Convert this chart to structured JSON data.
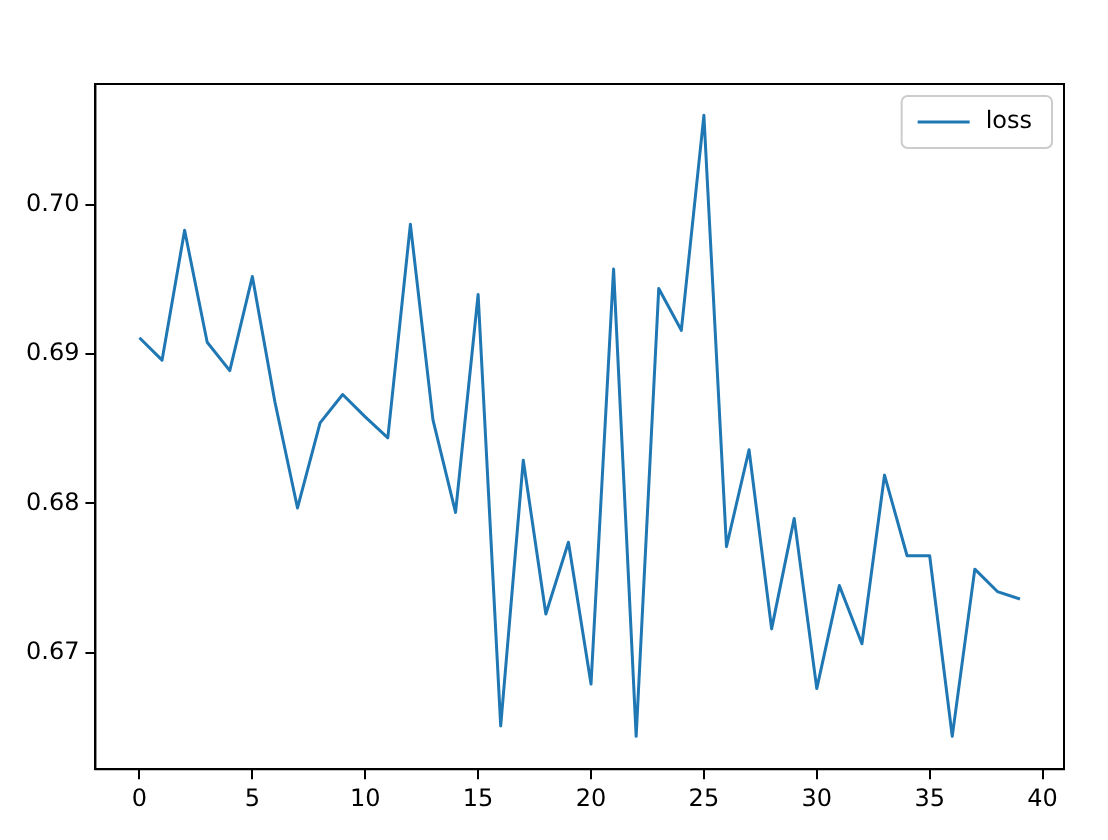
{
  "chart_data": {
    "type": "line",
    "x": [
      0,
      1,
      2,
      3,
      4,
      5,
      6,
      7,
      8,
      9,
      10,
      11,
      12,
      13,
      14,
      15,
      16,
      17,
      18,
      19,
      20,
      21,
      22,
      23,
      24,
      25,
      26,
      27,
      28,
      29,
      30,
      31,
      32,
      33,
      34,
      35,
      36,
      37,
      38,
      39
    ],
    "series": [
      {
        "name": "loss",
        "color": "#1f77b4",
        "values": [
          0.6911,
          0.6896,
          0.6983,
          0.6908,
          0.6889,
          0.6952,
          0.6868,
          0.6797,
          0.6854,
          0.6873,
          0.6858,
          0.6844,
          0.6987,
          0.6856,
          0.6794,
          0.694,
          0.6651,
          0.6829,
          0.6726,
          0.6774,
          0.6679,
          0.6957,
          0.6644,
          0.6944,
          0.6916,
          0.706,
          0.6771,
          0.6836,
          0.6716,
          0.679,
          0.6676,
          0.6745,
          0.6706,
          0.6819,
          0.6765,
          0.6765,
          0.6644,
          0.6756,
          0.6741,
          0.6736
        ]
      }
    ],
    "xlim": [
      -1.95,
      40.95
    ],
    "xticks": [
      0,
      5,
      10,
      15,
      20,
      25,
      30,
      35,
      40
    ],
    "ylim": [
      0.6622,
      0.7081
    ],
    "yticks": [
      {
        "value": 0.67,
        "label": "0.67"
      },
      {
        "value": 0.68,
        "label": "0.68"
      },
      {
        "value": 0.69,
        "label": "0.69"
      },
      {
        "value": 0.7,
        "label": "0.70"
      }
    ],
    "grid": false,
    "legend": "top right",
    "marker": "none",
    "line_style": "solid"
  }
}
